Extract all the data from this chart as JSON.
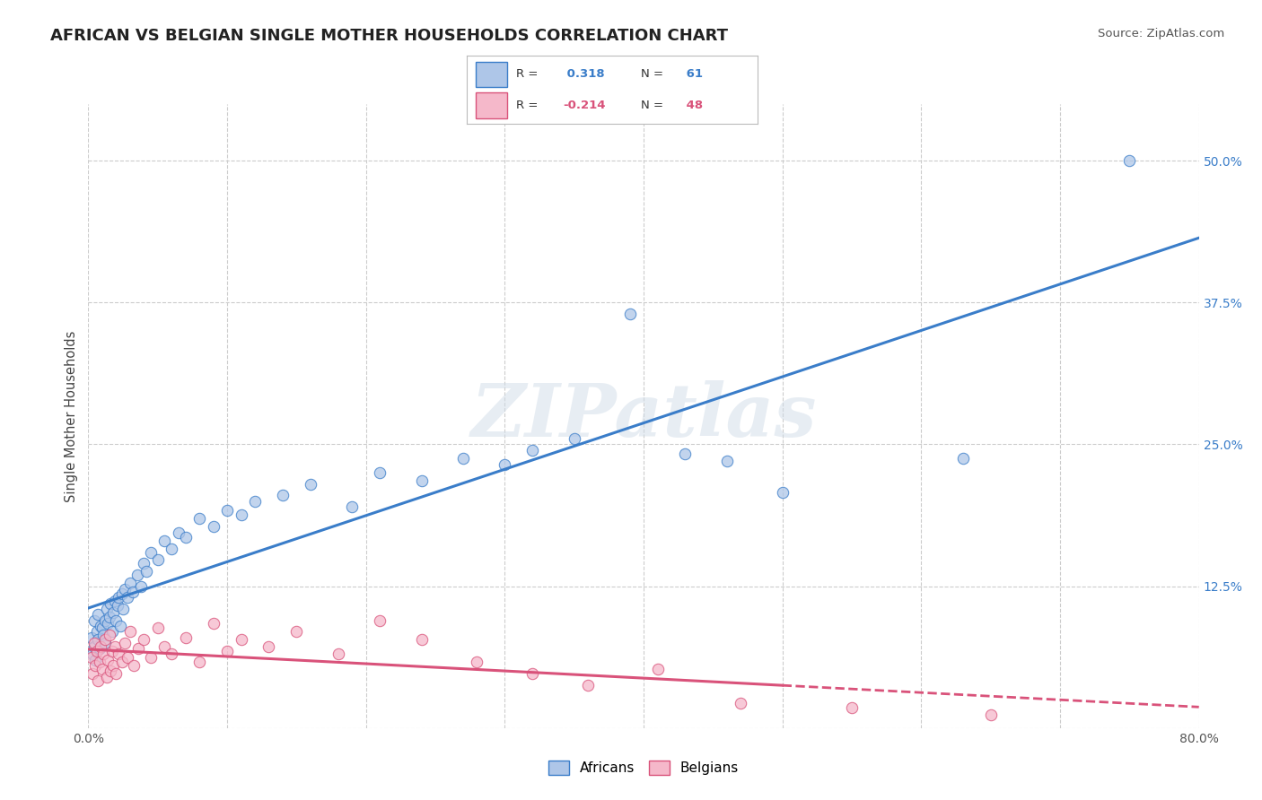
{
  "title": "AFRICAN VS BELGIAN SINGLE MOTHER HOUSEHOLDS CORRELATION CHART",
  "source": "Source: ZipAtlas.com",
  "ylabel": "Single Mother Households",
  "xlim": [
    0.0,
    0.8
  ],
  "ylim": [
    0.0,
    0.55
  ],
  "xticks": [
    0.0,
    0.1,
    0.2,
    0.3,
    0.4,
    0.5,
    0.6,
    0.7,
    0.8
  ],
  "xticklabels": [
    "0.0%",
    "",
    "",
    "",
    "",
    "",
    "",
    "",
    "80.0%"
  ],
  "ytick_positions": [
    0.0,
    0.125,
    0.25,
    0.375,
    0.5
  ],
  "ytick_labels": [
    "",
    "12.5%",
    "25.0%",
    "37.5%",
    "50.0%"
  ],
  "legend_label1": "Africans",
  "legend_label2": "Belgians",
  "r1": 0.318,
  "n1": 61,
  "r2": -0.214,
  "n2": 48,
  "color_african": "#aec6e8",
  "color_belgian": "#f5b8ca",
  "line_color_african": "#3a7dc9",
  "line_color_belgian": "#d9527a",
  "background_color": "#ffffff",
  "grid_color": "#cccccc",
  "african_points_x": [
    0.002,
    0.003,
    0.004,
    0.004,
    0.005,
    0.006,
    0.007,
    0.007,
    0.008,
    0.009,
    0.01,
    0.011,
    0.012,
    0.012,
    0.013,
    0.014,
    0.015,
    0.016,
    0.017,
    0.018,
    0.019,
    0.02,
    0.021,
    0.022,
    0.023,
    0.024,
    0.025,
    0.026,
    0.028,
    0.03,
    0.032,
    0.035,
    0.038,
    0.04,
    0.042,
    0.045,
    0.05,
    0.055,
    0.06,
    0.065,
    0.07,
    0.08,
    0.09,
    0.1,
    0.11,
    0.12,
    0.14,
    0.16,
    0.19,
    0.21,
    0.24,
    0.27,
    0.3,
    0.32,
    0.35,
    0.39,
    0.43,
    0.46,
    0.5,
    0.63,
    0.75
  ],
  "african_points_y": [
    0.08,
    0.065,
    0.072,
    0.095,
    0.06,
    0.085,
    0.078,
    0.1,
    0.07,
    0.09,
    0.088,
    0.082,
    0.095,
    0.075,
    0.105,
    0.092,
    0.098,
    0.11,
    0.085,
    0.102,
    0.112,
    0.095,
    0.108,
    0.115,
    0.09,
    0.118,
    0.105,
    0.122,
    0.115,
    0.128,
    0.12,
    0.135,
    0.125,
    0.145,
    0.138,
    0.155,
    0.148,
    0.165,
    0.158,
    0.172,
    0.168,
    0.185,
    0.178,
    0.192,
    0.188,
    0.2,
    0.205,
    0.215,
    0.195,
    0.225,
    0.218,
    0.238,
    0.232,
    0.245,
    0.255,
    0.365,
    0.242,
    0.235,
    0.208,
    0.238,
    0.5
  ],
  "belgian_points_x": [
    0.002,
    0.003,
    0.004,
    0.005,
    0.006,
    0.007,
    0.008,
    0.009,
    0.01,
    0.011,
    0.012,
    0.013,
    0.014,
    0.015,
    0.016,
    0.017,
    0.018,
    0.019,
    0.02,
    0.022,
    0.024,
    0.026,
    0.028,
    0.03,
    0.033,
    0.036,
    0.04,
    0.045,
    0.05,
    0.055,
    0.06,
    0.07,
    0.08,
    0.09,
    0.1,
    0.11,
    0.13,
    0.15,
    0.18,
    0.21,
    0.24,
    0.28,
    0.32,
    0.36,
    0.41,
    0.47,
    0.55,
    0.65
  ],
  "belgian_points_y": [
    0.062,
    0.048,
    0.075,
    0.055,
    0.068,
    0.042,
    0.058,
    0.072,
    0.052,
    0.065,
    0.078,
    0.045,
    0.06,
    0.082,
    0.05,
    0.068,
    0.055,
    0.072,
    0.048,
    0.065,
    0.058,
    0.075,
    0.062,
    0.085,
    0.055,
    0.07,
    0.078,
    0.062,
    0.088,
    0.072,
    0.065,
    0.08,
    0.058,
    0.092,
    0.068,
    0.078,
    0.072,
    0.085,
    0.065,
    0.095,
    0.078,
    0.058,
    0.048,
    0.038,
    0.052,
    0.022,
    0.018,
    0.012
  ]
}
